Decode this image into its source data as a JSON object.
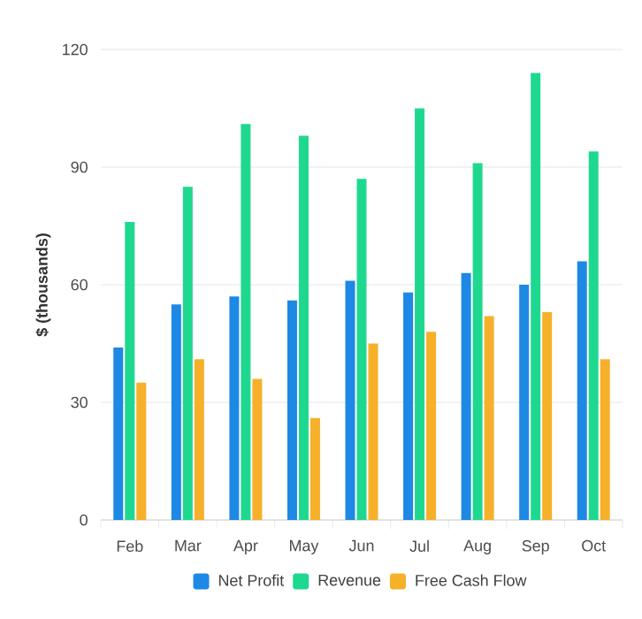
{
  "chart_data": {
    "type": "bar",
    "ylabel": "$ (thousands)",
    "categories": [
      "Feb",
      "Mar",
      "Apr",
      "May",
      "Jun",
      "Jul",
      "Aug",
      "Sep",
      "Oct"
    ],
    "series": [
      {
        "name": "Net Profit",
        "color": "#1e88e5",
        "values": [
          44,
          55,
          57,
          56,
          61,
          58,
          63,
          60,
          66
        ]
      },
      {
        "name": "Revenue",
        "color": "#1fd890",
        "values": [
          76,
          85,
          101,
          98,
          87,
          105,
          91,
          114,
          94
        ]
      },
      {
        "name": "Free Cash Flow",
        "color": "#f6b02a",
        "values": [
          35,
          41,
          36,
          26,
          45,
          48,
          52,
          53,
          41
        ]
      }
    ],
    "ylim": [
      0,
      120
    ],
    "yticks": [
      0,
      30,
      60,
      90,
      120
    ],
    "grid": "y",
    "legend": "bottom"
  }
}
